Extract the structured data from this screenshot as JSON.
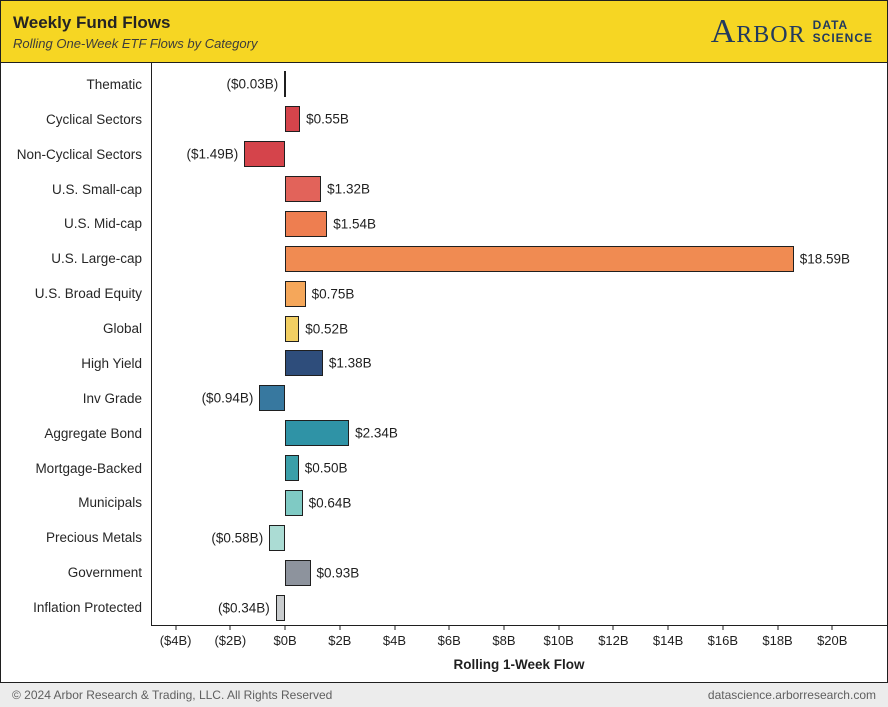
{
  "header": {
    "title": "Weekly Fund Flows",
    "subtitle": "Rolling One-Week ETF Flows by Category",
    "logo": {
      "brand": "Arbor",
      "line1": "DATA",
      "line2": "SCIENCE"
    },
    "bg_color": "#f6d623",
    "logo_color": "#223a5e"
  },
  "chart_data": {
    "type": "bar",
    "orientation": "horizontal",
    "title": "Weekly Fund Flows",
    "subtitle": "Rolling One-Week ETF Flows by Category",
    "xlabel": "Rolling 1-Week Flow",
    "xlim": [
      -4.9,
      22.0
    ],
    "categories": [
      "Thematic",
      "Cyclical Sectors",
      "Non-Cyclical Sectors",
      "U.S. Small-cap",
      "U.S. Mid-cap",
      "U.S. Large-cap",
      "U.S. Broad Equity",
      "Global",
      "High Yield",
      "Inv Grade",
      "Aggregate Bond",
      "Mortgage-Backed",
      "Municipals",
      "Precious Metals",
      "Government",
      "Inflation Protected"
    ],
    "values": [
      -0.03,
      0.55,
      -1.49,
      1.32,
      1.54,
      18.59,
      0.75,
      0.52,
      1.38,
      -0.94,
      2.34,
      0.5,
      0.64,
      -0.58,
      0.93,
      -0.34
    ],
    "value_labels": [
      "($0.03B)",
      "$0.55B",
      "($1.49B)",
      "$1.32B",
      "$1.54B",
      "$18.59B",
      "$0.75B",
      "$0.52B",
      "$1.38B",
      "($0.94B)",
      "$2.34B",
      "$0.50B",
      "$0.64B",
      "($0.58B)",
      "$0.93B",
      "($0.34B)"
    ],
    "bar_colors": [
      "#d5444b",
      "#d5444b",
      "#d5444b",
      "#e2635a",
      "#ee7e50",
      "#f08b52",
      "#f5a75a",
      "#f2cf63",
      "#2e4d7b",
      "#37789f",
      "#2f93a6",
      "#3b9fa9",
      "#7fcac4",
      "#abdcd4",
      "#8d939d",
      "#c9ccce"
    ],
    "bar_border_color": "#1f1f1f",
    "x_ticks": [
      {
        "v": -4,
        "label": "($4B)"
      },
      {
        "v": -2,
        "label": "($2B)"
      },
      {
        "v": 0,
        "label": "$0B"
      },
      {
        "v": 2,
        "label": "$2B"
      },
      {
        "v": 4,
        "label": "$4B"
      },
      {
        "v": 6,
        "label": "$6B"
      },
      {
        "v": 8,
        "label": "$8B"
      },
      {
        "v": 10,
        "label": "$10B"
      },
      {
        "v": 12,
        "label": "$12B"
      },
      {
        "v": 14,
        "label": "$14B"
      },
      {
        "v": 16,
        "label": "$16B"
      },
      {
        "v": 18,
        "label": "$18B"
      },
      {
        "v": 20,
        "label": "$20B"
      }
    ],
    "grid": false,
    "legend": false
  },
  "footer": {
    "left": "© 2024 Arbor Research & Trading, LLC. All Rights Reserved",
    "right": "datascience.arborresearch.com"
  }
}
